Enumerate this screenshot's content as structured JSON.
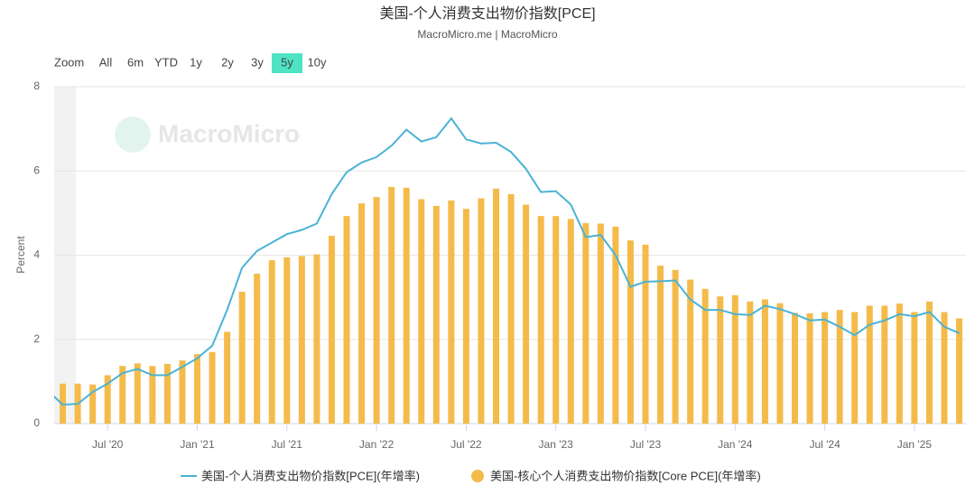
{
  "chart_data": {
    "type": "combo",
    "title": "美国-个人消费支出物价指数[PCE]",
    "subtitle": "MacroMicro.me | MacroMicro",
    "watermark": "MacroMicro",
    "range_selector": {
      "label": "Zoom",
      "buttons": [
        "All",
        "6m",
        "YTD",
        "1y",
        "2y",
        "3y",
        "5y",
        "10y"
      ],
      "active": "5y"
    },
    "y_label": "Percent",
    "categories": [
      null,
      null,
      null,
      null,
      "Jul '20",
      null,
      null,
      null,
      null,
      null,
      "Jan '21",
      null,
      null,
      null,
      null,
      null,
      "Jul '21",
      null,
      null,
      null,
      null,
      null,
      "Jan '22",
      null,
      null,
      null,
      null,
      null,
      "Jul '22",
      null,
      null,
      null,
      null,
      null,
      "Jan '23",
      null,
      null,
      null,
      null,
      null,
      "Jul '23",
      null,
      null,
      null,
      null,
      null,
      "Jan '24",
      null,
      null,
      null,
      null,
      null,
      "Jul '24",
      null,
      null,
      null,
      null,
      null,
      "Jan '25",
      null,
      null,
      null
    ],
    "series": [
      {
        "name": "美国-个人消费支出物价指数[PCE](年增率)",
        "type": "line",
        "color": "#4bb3d6",
        "values": [
          0.78,
          0.45,
          0.47,
          0.75,
          0.95,
          1.2,
          1.3,
          1.15,
          1.15,
          1.35,
          1.55,
          1.85,
          2.7,
          3.7,
          4.1,
          4.3,
          4.5,
          4.6,
          4.75,
          5.45,
          5.97,
          6.2,
          6.33,
          6.6,
          6.98,
          6.7,
          6.8,
          7.25,
          6.75,
          6.65,
          6.67,
          6.45,
          6.05,
          5.5,
          5.52,
          5.2,
          4.43,
          4.48,
          4.0,
          3.25,
          3.37,
          3.38,
          3.4,
          2.95,
          2.7,
          2.7,
          2.6,
          2.58,
          2.8,
          2.72,
          2.6,
          2.45,
          2.47,
          2.3,
          2.1,
          2.35,
          2.45,
          2.6,
          2.55,
          2.65,
          2.3,
          2.15
        ]
      },
      {
        "name": "美国-核心个人消费支出物价指数[Core PCE](年增率)",
        "type": "bar",
        "color": "#f4bb4a",
        "values": [
          null,
          0.95,
          0.95,
          0.93,
          1.15,
          1.37,
          1.43,
          1.37,
          1.42,
          1.5,
          1.65,
          1.7,
          2.18,
          3.13,
          3.56,
          3.88,
          3.95,
          3.98,
          4.02,
          4.46,
          4.93,
          5.23,
          5.38,
          5.62,
          5.6,
          5.33,
          5.17,
          5.3,
          5.1,
          5.35,
          5.58,
          5.45,
          5.2,
          4.93,
          4.93,
          4.86,
          4.76,
          4.75,
          4.68,
          4.35,
          4.25,
          3.75,
          3.65,
          3.42,
          3.2,
          3.02,
          3.05,
          2.9,
          2.95,
          2.86,
          2.63,
          2.62,
          2.65,
          2.7,
          2.65,
          2.8,
          2.8,
          2.85,
          2.65,
          2.9,
          2.65,
          2.5
        ]
      }
    ],
    "ylim": [
      0,
      8
    ],
    "yticks": [
      0,
      2,
      4,
      6,
      8
    ],
    "grid": true
  }
}
